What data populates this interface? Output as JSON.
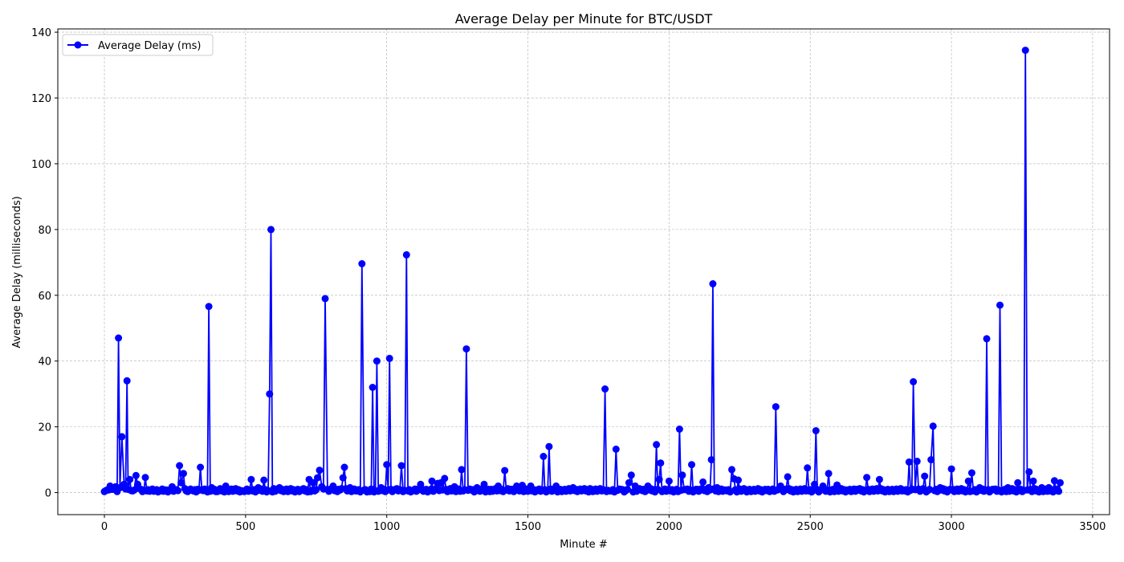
{
  "chart_data": {
    "type": "line",
    "title": "Average Delay per Minute for BTC/USDT",
    "xlabel": "Minute #",
    "ylabel": "Average Delay (milliseconds)",
    "xlim": [
      -165,
      3560
    ],
    "ylim": [
      -6.7,
      141
    ],
    "xticks": [
      0,
      500,
      1000,
      1500,
      2000,
      2500,
      3000,
      3500
    ],
    "yticks": [
      0,
      20,
      40,
      60,
      80,
      100,
      120,
      140
    ],
    "grid": true,
    "legend_position": "top-left",
    "series": [
      {
        "name": "Average Delay (ms)",
        "color": "#0000ff",
        "marker": "circle",
        "x": [
          0,
          10,
          20,
          30,
          40,
          50,
          55,
          62,
          70,
          80,
          84,
          90,
          100,
          112,
          118,
          130,
          145,
          160,
          180,
          200,
          220,
          240,
          255,
          266,
          272,
          280,
          290,
          310,
          330,
          340,
          350,
          360,
          370,
          380,
          400,
          430,
          460,
          490,
          520,
          545,
          565,
          585,
          590,
          600,
          620,
          650,
          680,
          700,
          725,
          740,
          755,
          762,
          770,
          782,
          790,
          810,
          830,
          845,
          850,
          870,
          890,
          912,
          920,
          940,
          950,
          965,
          980,
          1000,
          1010,
          1030,
          1052,
          1070,
          1090,
          1110,
          1120,
          1140,
          1160,
          1180,
          1192,
          1205,
          1220,
          1240,
          1265,
          1282,
          1300,
          1320,
          1345,
          1370,
          1395,
          1418,
          1440,
          1460,
          1480,
          1510,
          1530,
          1555,
          1575,
          1600,
          1630,
          1660,
          1690,
          1720,
          1750,
          1773,
          1790,
          1812,
          1830,
          1858,
          1866,
          1880,
          1900,
          1925,
          1955,
          1965,
          1970,
          2000,
          2037,
          2047,
          2060,
          2080,
          2100,
          2120,
          2140,
          2150,
          2155,
          2170,
          2200,
          2222,
          2230,
          2245,
          2270,
          2300,
          2340,
          2378,
          2395,
          2420,
          2450,
          2490,
          2515,
          2520,
          2545,
          2565,
          2595,
          2630,
          2665,
          2700,
          2745,
          2790,
          2830,
          2850,
          2865,
          2878,
          2905,
          2928,
          2935,
          2960,
          3000,
          3030,
          3060,
          3072,
          3100,
          3125,
          3150,
          3172,
          3200,
          3235,
          3262,
          3275,
          3290,
          3320,
          3345,
          3365,
          3385
        ],
        "values": [
          0.3,
          0.8,
          2.0,
          1.0,
          1.8,
          47,
          1.5,
          17,
          2.5,
          34,
          1.0,
          4.0,
          0.5,
          5.2,
          2.5,
          1.0,
          4.6,
          0.4,
          0.6,
          0.5,
          0.8,
          1.8,
          0.9,
          8.2,
          3.0,
          5.8,
          0.5,
          0.7,
          1.0,
          7.7,
          0.6,
          0.9,
          56.6,
          1.5,
          0.3,
          2.0,
          1.0,
          0.5,
          4.0,
          1.5,
          3.8,
          30,
          80,
          1.2,
          1.5,
          0.3,
          0.6,
          1.0,
          4.0,
          3.0,
          4.5,
          6.8,
          1.8,
          59,
          1.0,
          2.0,
          1.0,
          4.5,
          7.7,
          1.5,
          0.5,
          69.6,
          0.8,
          0.3,
          32,
          40,
          1.5,
          8.5,
          40.8,
          1.0,
          8.2,
          72.3,
          0.5,
          1.0,
          2.5,
          1.0,
          3.5,
          2.8,
          3.0,
          4.3,
          0.5,
          1.8,
          7.0,
          43.7,
          0.8,
          1.5,
          2.5,
          1.0,
          2.0,
          6.7,
          1.0,
          2.0,
          2.2,
          2.0,
          0.8,
          11,
          14,
          2.0,
          1.0,
          1.5,
          0.5,
          1.2,
          0.8,
          31.5,
          0.5,
          13.2,
          1.0,
          3.0,
          5.3,
          2.0,
          1.0,
          2.0,
          14.6,
          4.0,
          9.0,
          3.5,
          19.3,
          5.3,
          1.0,
          8.5,
          1.0,
          3.2,
          1.5,
          10,
          63.5,
          1.5,
          0.8,
          7.0,
          4.2,
          3.8,
          1.0,
          1.0,
          1.0,
          26.1,
          2.0,
          4.8,
          1.0,
          7.5,
          2.5,
          18.8,
          2.0,
          5.8,
          2.3,
          0.8,
          1.0,
          4.6,
          4.0,
          1.0,
          0.8,
          9.3,
          33.7,
          9.5,
          5.0,
          10,
          20.2,
          1.5,
          7.2,
          1.0,
          3.5,
          6.0,
          1.5,
          46.8,
          1.0,
          57,
          1.5,
          3.0,
          134.5,
          6.3,
          3.5,
          1.5,
          1.5,
          3.6,
          3.0
        ]
      }
    ]
  }
}
